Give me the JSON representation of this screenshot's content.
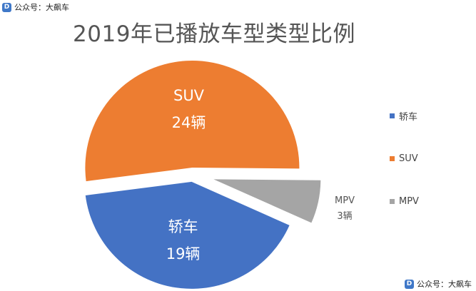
{
  "watermark": {
    "icon": "square-d-logo-icon",
    "icon_glyph": "D",
    "text": "公众号：大飙车"
  },
  "chart_data": {
    "type": "pie",
    "title": "2019年已播放车型类型比例",
    "legend_position": "right",
    "slices": [
      {
        "label": "轿车",
        "value": 19,
        "value_label": "19辆",
        "color": "#4472c4",
        "exploded": false,
        "label_inside": true
      },
      {
        "label": "SUV",
        "value": 24,
        "value_label": "24辆",
        "color": "#ed7d31",
        "exploded": false,
        "label_inside": true
      },
      {
        "label": "MPV",
        "value": 3,
        "value_label": "3辆",
        "color": "#a5a5a5",
        "exploded": true,
        "label_inside": false
      }
    ]
  }
}
